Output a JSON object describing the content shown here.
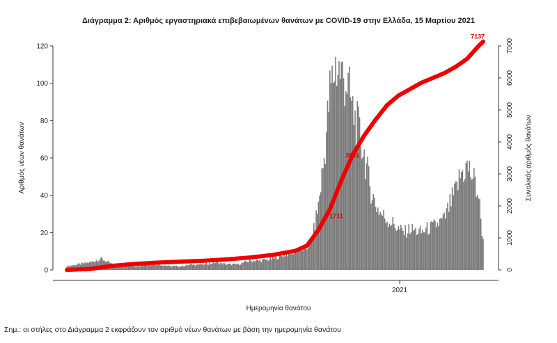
{
  "chart_data": {
    "type": "bar",
    "title": "Διάγραμμα 2: Αριθμός εργαστηριακά επιβεβαιωμένων θανάτων με COVID-19 στην Ελλάδα, 15 Μαρτίου 2021",
    "xlabel": "Ημερομηνία θανάτου",
    "ylabel": "Αριθμός νέων θανάτων",
    "y2label": "Συνολικός αριθμός θανάτων",
    "ylim": [
      0,
      120
    ],
    "y2lim": [
      0,
      7000
    ],
    "yticks": [
      "0",
      "20",
      "40",
      "60",
      "80",
      "100",
      "120"
    ],
    "y2ticks": [
      "0",
      "1000",
      "2000",
      "3000",
      "4000",
      "5000",
      "6000",
      "7000"
    ],
    "xtick_label": "2021",
    "xtick_day": 291,
    "series": [
      {
        "type": "bar",
        "x_days": [
          0,
          10,
          20,
          30,
          40,
          50,
          60,
          70,
          80,
          90,
          100,
          110,
          120,
          130,
          140,
          150,
          160,
          170,
          180,
          190,
          200,
          210,
          215,
          220,
          225,
          230,
          235,
          240,
          245,
          250,
          255,
          260,
          265,
          270,
          275,
          280,
          285,
          290,
          295,
          300,
          305,
          310,
          315,
          320,
          325,
          330,
          335,
          340,
          345,
          350,
          355,
          360,
          364
        ],
        "values": [
          2,
          3,
          4,
          6,
          3,
          3,
          2,
          3,
          3,
          2,
          2,
          3,
          3,
          4,
          3,
          3,
          5,
          5,
          6,
          8,
          10,
          12,
          18,
          35,
          60,
          95,
          110,
          105,
          100,
          85,
          75,
          62,
          45,
          35,
          30,
          27,
          25,
          22,
          20,
          22,
          21,
          20,
          22,
          23,
          25,
          27,
          35,
          42,
          52,
          55,
          50,
          40,
          15
        ]
      },
      {
        "type": "line",
        "x_days": [
          0,
          20,
          40,
          60,
          80,
          100,
          120,
          140,
          160,
          180,
          200,
          210,
          220,
          230,
          240,
          250,
          260,
          270,
          280,
          290,
          300,
          310,
          320,
          330,
          340,
          350,
          355,
          360,
          364
        ],
        "values": [
          0,
          30,
          130,
          190,
          230,
          260,
          290,
          330,
          390,
          470,
          600,
          760,
          1250,
          1900,
          2800,
          3600,
          4200,
          4700,
          5150,
          5450,
          5650,
          5850,
          6000,
          6150,
          6350,
          6600,
          6800,
          7000,
          7137
        ]
      }
    ],
    "annotations": [
      "1711",
      "3601",
      "7137"
    ],
    "legend": "none",
    "grid": false
  },
  "note": "Σημ.: οι στήλες στο Διάγραμμα 2 εκφράζουν τον αριθμό νέων θανάτων με βάση την ημερομηνία θανάτου"
}
